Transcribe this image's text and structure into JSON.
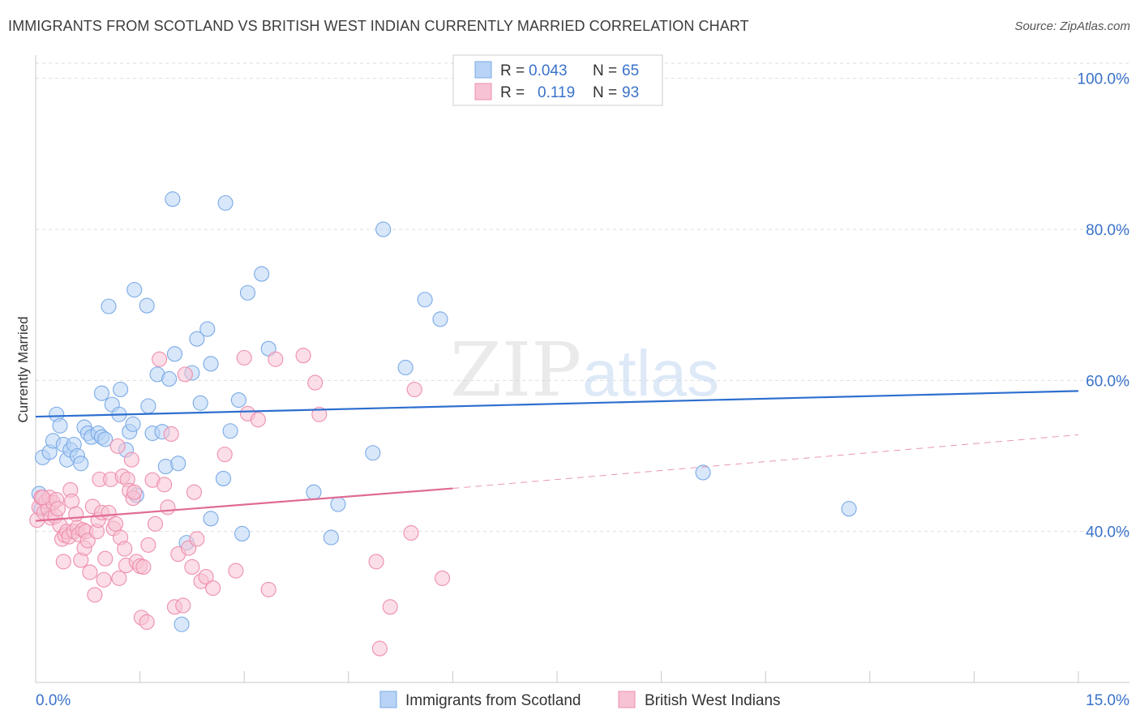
{
  "title": "IMMIGRANTS FROM SCOTLAND VS BRITISH WEST INDIAN CURRENTLY MARRIED CORRELATION CHART",
  "source": "Source: ZipAtlas.com",
  "watermark": {
    "zip": "ZIP",
    "atlas": "atlas"
  },
  "colors": {
    "blue_fill": "#b8d3f5",
    "blue_edge": "#7aaae6",
    "blue_line": "#2d6fcf",
    "pink_fill": "#f7c2d3",
    "pink_edge": "#ee8fad",
    "pink_line": "#e06b95",
    "axis_text": "#3a72c9",
    "grid": "#dddddd"
  },
  "legend_stats": [
    {
      "r_label": "R =",
      "r_value": "0.043",
      "n_label": "N =",
      "n_value": "65"
    },
    {
      "r_label": "R =",
      "r_value": "0.119",
      "n_label": "N =",
      "n_value": "93"
    }
  ],
  "chart_data": {
    "type": "scatter",
    "title": "IMMIGRANTS FROM SCOTLAND VS BRITISH WEST INDIAN CURRENTLY MARRIED CORRELATION CHART",
    "xlabel": "",
    "ylabel": "Currently Married",
    "xlim": [
      0,
      15
    ],
    "ylim": [
      20,
      102
    ],
    "x_tick_labels": [
      "0.0%",
      "15.0%"
    ],
    "y_ticks": [
      40,
      60,
      80,
      100
    ],
    "y_tick_labels": [
      "40.0%",
      "60.0%",
      "80.0%",
      "100.0%"
    ],
    "grid": true,
    "legend_position": "top-center",
    "series": [
      {
        "name": "Immigrants from Scotland",
        "color": "#b8d3f5",
        "trend": {
          "x": [
            0,
            15
          ],
          "y": [
            55.2,
            58.6
          ],
          "style": "solid"
        },
        "points": [
          [
            0.1,
            49.8
          ],
          [
            0.2,
            50.5
          ],
          [
            0.25,
            52.0
          ],
          [
            0.3,
            55.5
          ],
          [
            0.35,
            54.0
          ],
          [
            0.4,
            51.5
          ],
          [
            0.45,
            49.5
          ],
          [
            0.5,
            50.8
          ],
          [
            0.55,
            51.5
          ],
          [
            0.6,
            50.0
          ],
          [
            0.65,
            49.0
          ],
          [
            0.7,
            53.8
          ],
          [
            0.75,
            53.0
          ],
          [
            0.8,
            52.5
          ],
          [
            0.9,
            53.0
          ],
          [
            0.95,
            52.5
          ],
          [
            0.95,
            58.3
          ],
          [
            1.0,
            52.2
          ],
          [
            1.05,
            69.8
          ],
          [
            1.1,
            56.8
          ],
          [
            1.2,
            55.5
          ],
          [
            1.22,
            58.8
          ],
          [
            1.3,
            50.8
          ],
          [
            1.35,
            53.2
          ],
          [
            1.4,
            54.2
          ],
          [
            1.42,
            72.0
          ],
          [
            1.45,
            44.8
          ],
          [
            1.6,
            69.9
          ],
          [
            1.62,
            56.6
          ],
          [
            1.68,
            53.0
          ],
          [
            1.75,
            60.8
          ],
          [
            1.82,
            53.2
          ],
          [
            1.87,
            48.6
          ],
          [
            1.92,
            60.2
          ],
          [
            1.97,
            84.0
          ],
          [
            2.0,
            63.5
          ],
          [
            2.05,
            49.0
          ],
          [
            2.1,
            27.7
          ],
          [
            2.17,
            38.5
          ],
          [
            2.25,
            61.0
          ],
          [
            2.32,
            65.5
          ],
          [
            2.37,
            57.0
          ],
          [
            2.47,
            66.8
          ],
          [
            2.52,
            41.7
          ],
          [
            2.52,
            62.2
          ],
          [
            2.7,
            47.0
          ],
          [
            2.73,
            83.5
          ],
          [
            2.8,
            53.3
          ],
          [
            2.92,
            57.4
          ],
          [
            2.97,
            39.7
          ],
          [
            3.05,
            71.6
          ],
          [
            3.25,
            74.1
          ],
          [
            3.35,
            64.2
          ],
          [
            4.0,
            45.2
          ],
          [
            4.25,
            39.2
          ],
          [
            4.35,
            43.6
          ],
          [
            4.85,
            50.4
          ],
          [
            5.0,
            80.0
          ],
          [
            5.32,
            61.7
          ],
          [
            5.6,
            70.7
          ],
          [
            5.82,
            68.1
          ],
          [
            9.6,
            47.8
          ],
          [
            11.7,
            43.0
          ],
          [
            0.05,
            45.0
          ],
          [
            0.08,
            43.0
          ]
        ]
      },
      {
        "name": "British West Indians",
        "color": "#f7c2d3",
        "trend": {
          "x": [
            0,
            6
          ],
          "y": [
            41.4,
            45.7
          ],
          "style": "solid",
          "extended": {
            "x": [
              6,
              15
            ],
            "y": [
              45.7,
              52.8
            ],
            "style": "dashed"
          }
        },
        "points": [
          [
            0.02,
            41.5
          ],
          [
            0.05,
            43.2
          ],
          [
            0.08,
            44.5
          ],
          [
            0.12,
            42.5
          ],
          [
            0.15,
            44.0
          ],
          [
            0.18,
            43.0
          ],
          [
            0.2,
            44.5
          ],
          [
            0.22,
            41.8
          ],
          [
            0.25,
            43.8
          ],
          [
            0.28,
            42.0
          ],
          [
            0.3,
            44.2
          ],
          [
            0.32,
            43.0
          ],
          [
            0.35,
            40.8
          ],
          [
            0.38,
            39.0
          ],
          [
            0.4,
            36.0
          ],
          [
            0.42,
            39.5
          ],
          [
            0.45,
            40.0
          ],
          [
            0.48,
            39.3
          ],
          [
            0.5,
            45.5
          ],
          [
            0.52,
            44.0
          ],
          [
            0.55,
            40.0
          ],
          [
            0.58,
            42.3
          ],
          [
            0.6,
            40.5
          ],
          [
            0.62,
            39.6
          ],
          [
            0.65,
            36.2
          ],
          [
            0.68,
            40.2
          ],
          [
            0.7,
            37.8
          ],
          [
            0.72,
            40.0
          ],
          [
            0.75,
            38.8
          ],
          [
            0.78,
            34.6
          ],
          [
            0.82,
            43.3
          ],
          [
            0.85,
            31.6
          ],
          [
            0.88,
            40.0
          ],
          [
            0.9,
            41.5
          ],
          [
            0.92,
            46.9
          ],
          [
            0.95,
            42.5
          ],
          [
            0.98,
            33.6
          ],
          [
            1.0,
            36.4
          ],
          [
            1.05,
            42.5
          ],
          [
            1.08,
            46.9
          ],
          [
            1.12,
            40.4
          ],
          [
            1.15,
            41.0
          ],
          [
            1.18,
            51.3
          ],
          [
            1.2,
            33.8
          ],
          [
            1.22,
            39.2
          ],
          [
            1.25,
            47.3
          ],
          [
            1.28,
            37.7
          ],
          [
            1.3,
            35.5
          ],
          [
            1.32,
            46.9
          ],
          [
            1.35,
            45.4
          ],
          [
            1.38,
            49.5
          ],
          [
            1.4,
            44.4
          ],
          [
            1.42,
            45.2
          ],
          [
            1.45,
            36.0
          ],
          [
            1.5,
            35.4
          ],
          [
            1.52,
            28.6
          ],
          [
            1.55,
            35.3
          ],
          [
            1.6,
            28.0
          ],
          [
            1.62,
            38.2
          ],
          [
            1.68,
            46.8
          ],
          [
            1.72,
            41.0
          ],
          [
            1.78,
            62.8
          ],
          [
            1.85,
            46.2
          ],
          [
            1.9,
            43.2
          ],
          [
            1.95,
            52.9
          ],
          [
            2.0,
            30.0
          ],
          [
            2.05,
            37.0
          ],
          [
            2.12,
            30.2
          ],
          [
            2.15,
            60.8
          ],
          [
            2.2,
            37.8
          ],
          [
            2.25,
            35.3
          ],
          [
            2.28,
            45.2
          ],
          [
            2.32,
            39.0
          ],
          [
            2.38,
            33.4
          ],
          [
            2.45,
            34.0
          ],
          [
            2.55,
            32.5
          ],
          [
            2.72,
            50.2
          ],
          [
            2.88,
            34.8
          ],
          [
            3.0,
            63.0
          ],
          [
            3.05,
            55.6
          ],
          [
            3.2,
            54.8
          ],
          [
            3.35,
            32.3
          ],
          [
            3.45,
            62.8
          ],
          [
            3.85,
            63.3
          ],
          [
            4.02,
            59.7
          ],
          [
            4.08,
            55.5
          ],
          [
            4.9,
            36.0
          ],
          [
            4.95,
            24.5
          ],
          [
            5.1,
            30.0
          ],
          [
            5.4,
            39.8
          ],
          [
            5.45,
            58.8
          ],
          [
            5.85,
            33.8
          ],
          [
            0.1,
            44.5
          ]
        ]
      }
    ]
  }
}
